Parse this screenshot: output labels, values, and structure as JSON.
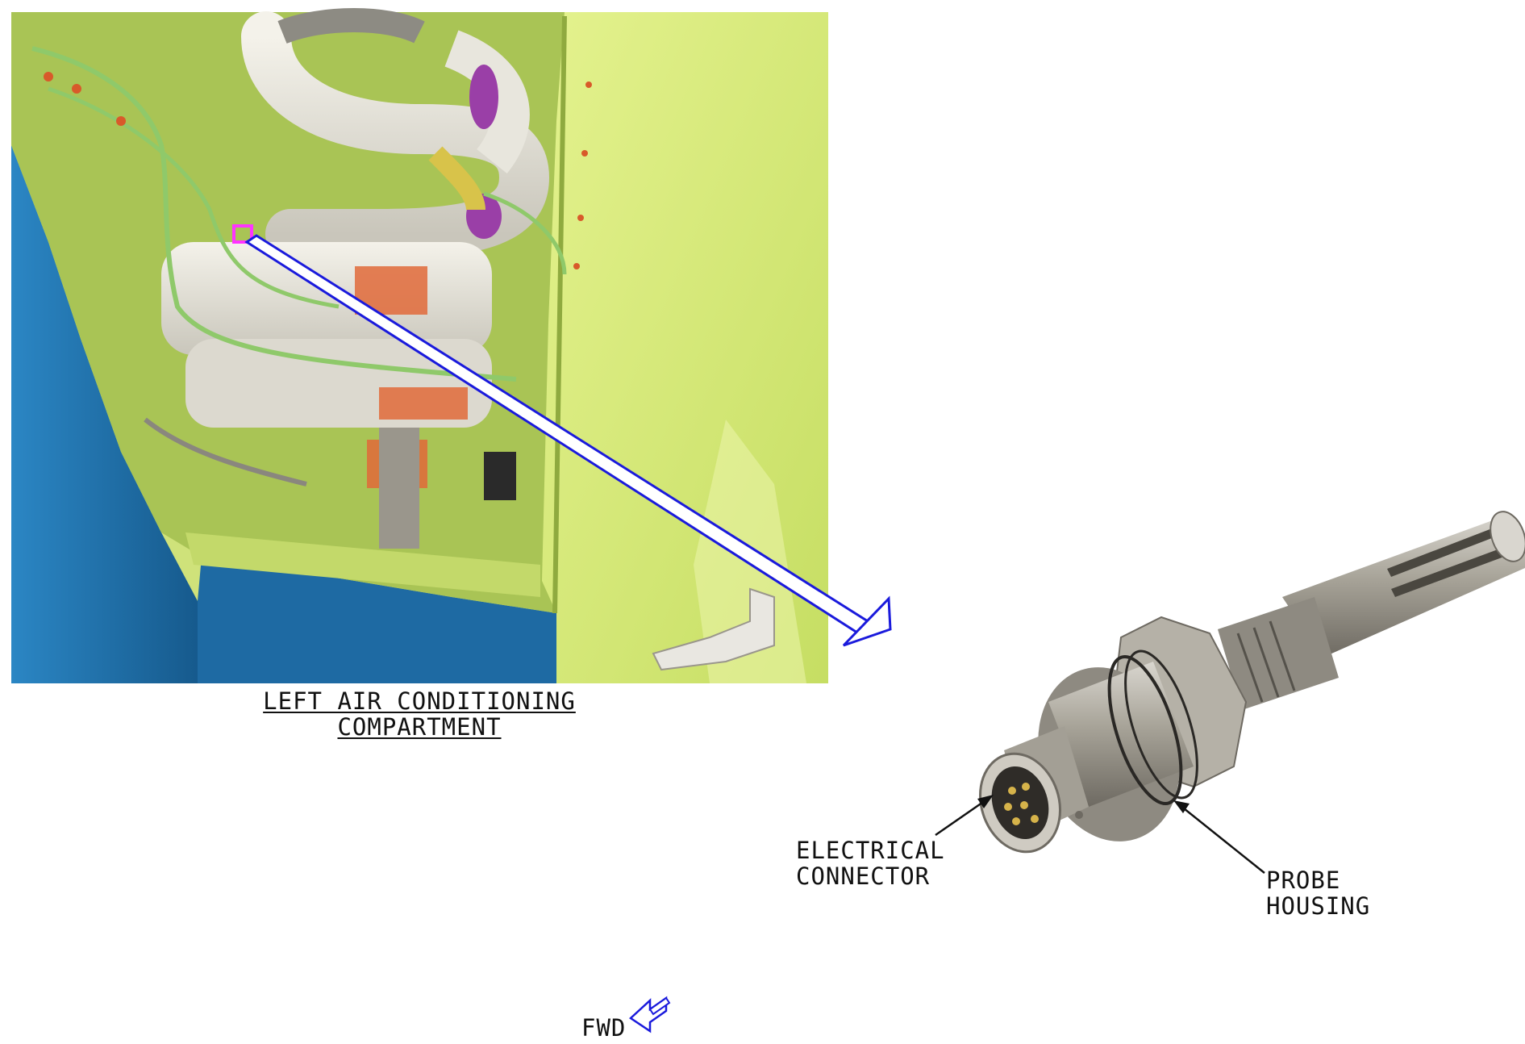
{
  "colors": {
    "panel_green": "#d8ec7a",
    "panel_green_shade": "#b9d25a",
    "skin_blue": "#1f6ea8",
    "duct_white": "#e8e6dd",
    "clamp_purple": "#9a3fa7",
    "clamp_orange": "#e06a3a",
    "callout_blue": "#1a1adc",
    "highlight_magenta": "#ff33ff",
    "metal": "#a9a59c"
  },
  "icons": {
    "fwd_arrow": "fwd-arrow-icon"
  },
  "labels": {
    "compartment_line1": "LEFT AIR CONDITIONING",
    "compartment_line2": "COMPARTMENT",
    "electrical_line1": "ELECTRICAL",
    "electrical_line2": "CONNECTOR",
    "probe_line1": "PROBE",
    "probe_line2": "HOUSING",
    "fwd": "FWD"
  }
}
